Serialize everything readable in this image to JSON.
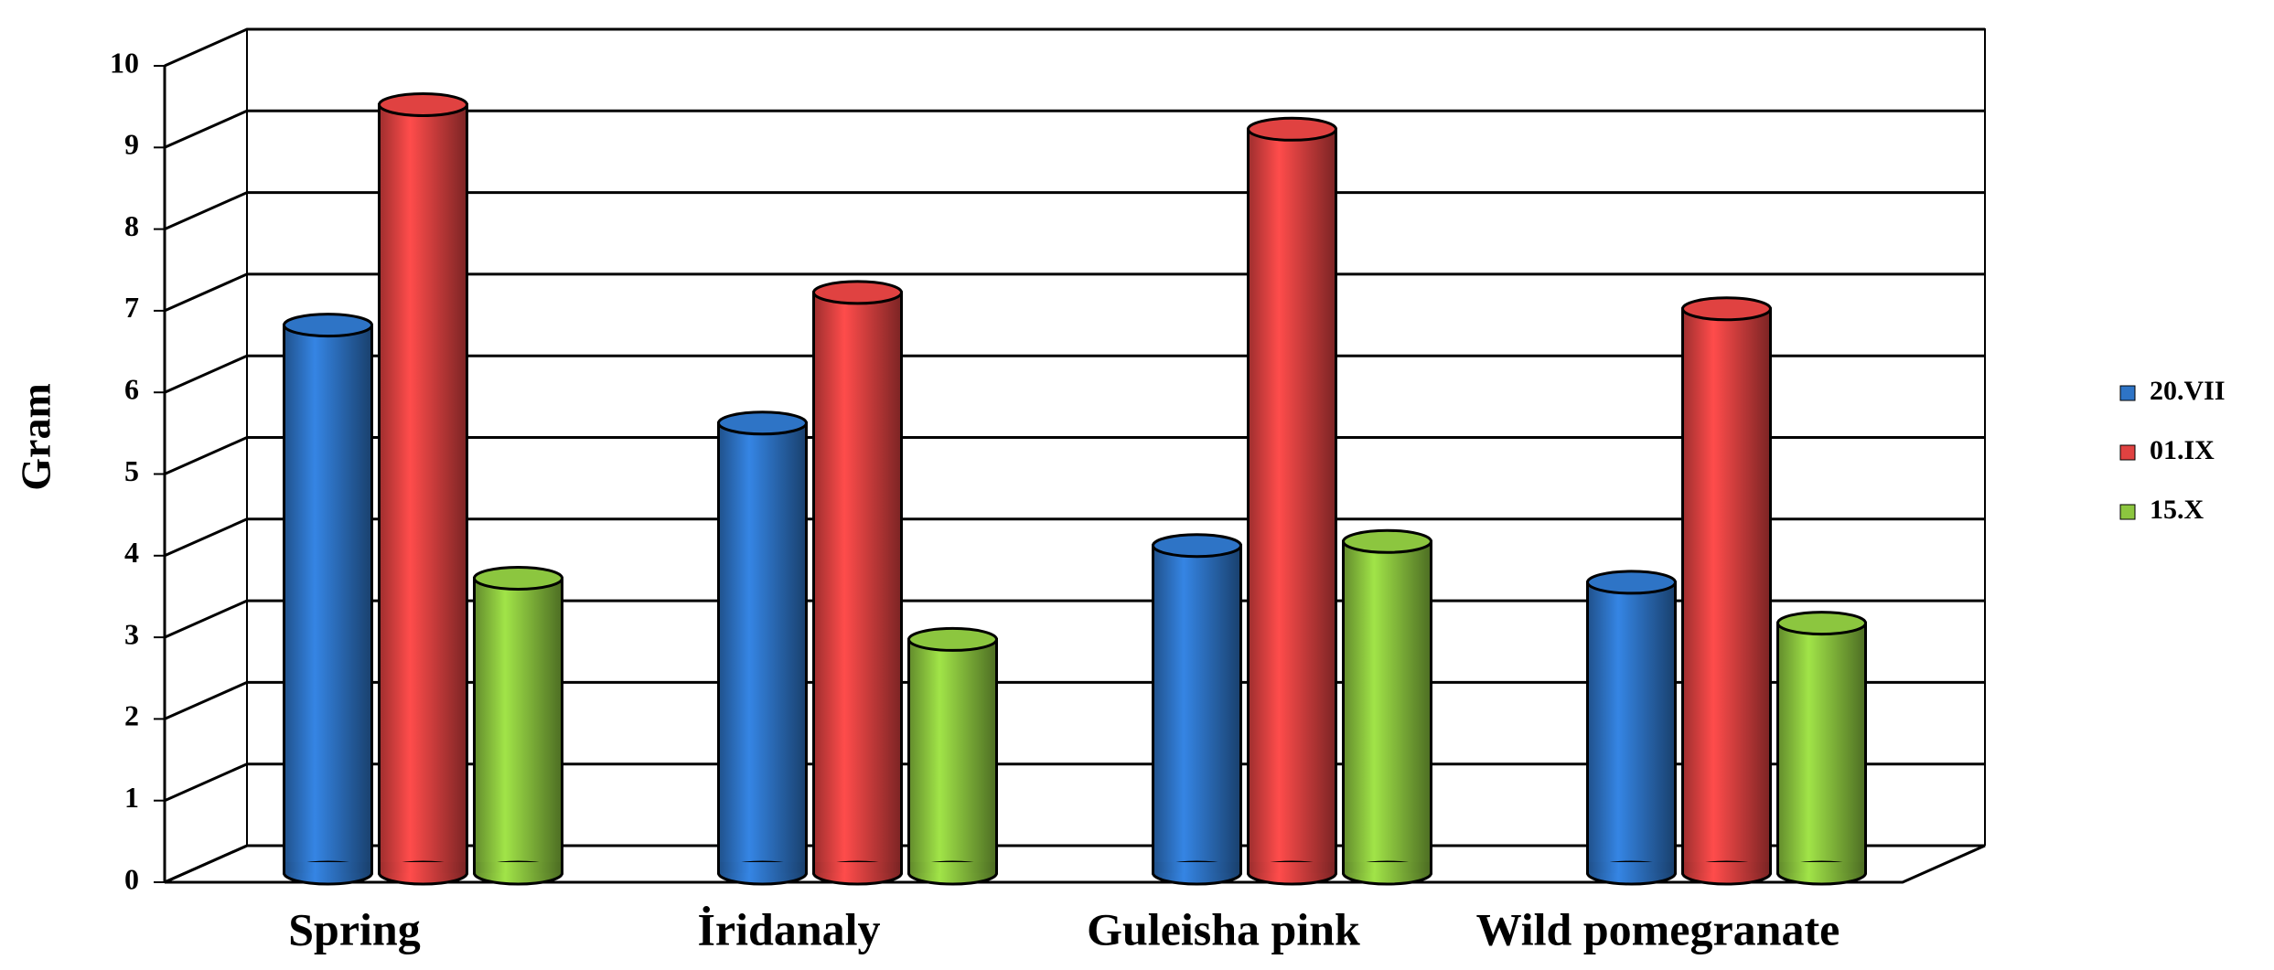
{
  "chart_data": {
    "type": "bar",
    "y_label": "Gram",
    "categories": [
      "Spring",
      "İridanaly",
      "Guleisha pink",
      "Wild pomegranate"
    ],
    "series": [
      {
        "name": "20.VII",
        "color": "#2e74c6",
        "values": [
          6.6,
          5.4,
          3.9,
          3.45
        ]
      },
      {
        "name": "01.IX",
        "color": "#e04241",
        "values": [
          9.3,
          7.0,
          9.0,
          6.8
        ]
      },
      {
        "name": "15.X",
        "color": "#8cc63f",
        "values": [
          3.5,
          2.75,
          3.95,
          2.95
        ]
      }
    ],
    "ylim": [
      0,
      10
    ],
    "yticks": [
      0,
      1,
      2,
      3,
      4,
      5,
      6,
      7,
      8,
      9,
      10
    ],
    "grid": true,
    "legend": "right"
  }
}
